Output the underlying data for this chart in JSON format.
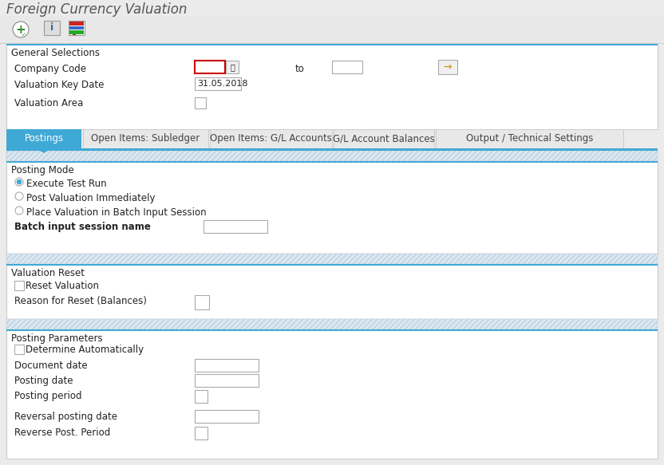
{
  "title": "Foreign Currency Valuation",
  "bg_color": "#ebebeb",
  "white": "#ffffff",
  "blue_tab": "#3fa9d6",
  "blue_line": "#3fa9d6",
  "tab_bg": "#e8e8e8",
  "section_bg": "#ffffff",
  "hatch_bg": "#dce8f0",
  "toolbar_bg": "#e8e8e8",
  "tabs": [
    "Postings",
    "Open Items: Subledger",
    "Open Items: G/L Accounts",
    "G/L Account Balances",
    "Output / Technical Settings"
  ],
  "general_section_label": "General Selections",
  "posting_mode_label": "Posting Mode",
  "valuation_reset_label": "Valuation Reset",
  "posting_params_label": "Posting Parameters",
  "radio_options": [
    "Execute Test Run",
    "Post Valuation Immediately",
    "Place Valuation in Batch Input Session"
  ],
  "radio_selected": 0,
  "company_code_label": "Company Code",
  "company_code_to": "to",
  "valuation_key_date_label": "Valuation Key Date",
  "valuation_key_date_value": "31.05.2018",
  "valuation_area_label": "Valuation Area",
  "batch_input_label": "Batch input session name",
  "reset_valuation_label": "Reset Valuation",
  "reason_reset_label": "Reason for Reset (Balances)",
  "determine_auto_label": "Determine Automatically",
  "document_date_label": "Document date",
  "posting_date_label": "Posting date",
  "posting_period_label": "Posting period",
  "reversal_posting_label": "Reversal posting date",
  "reverse_post_label": "Reverse Post. Period"
}
